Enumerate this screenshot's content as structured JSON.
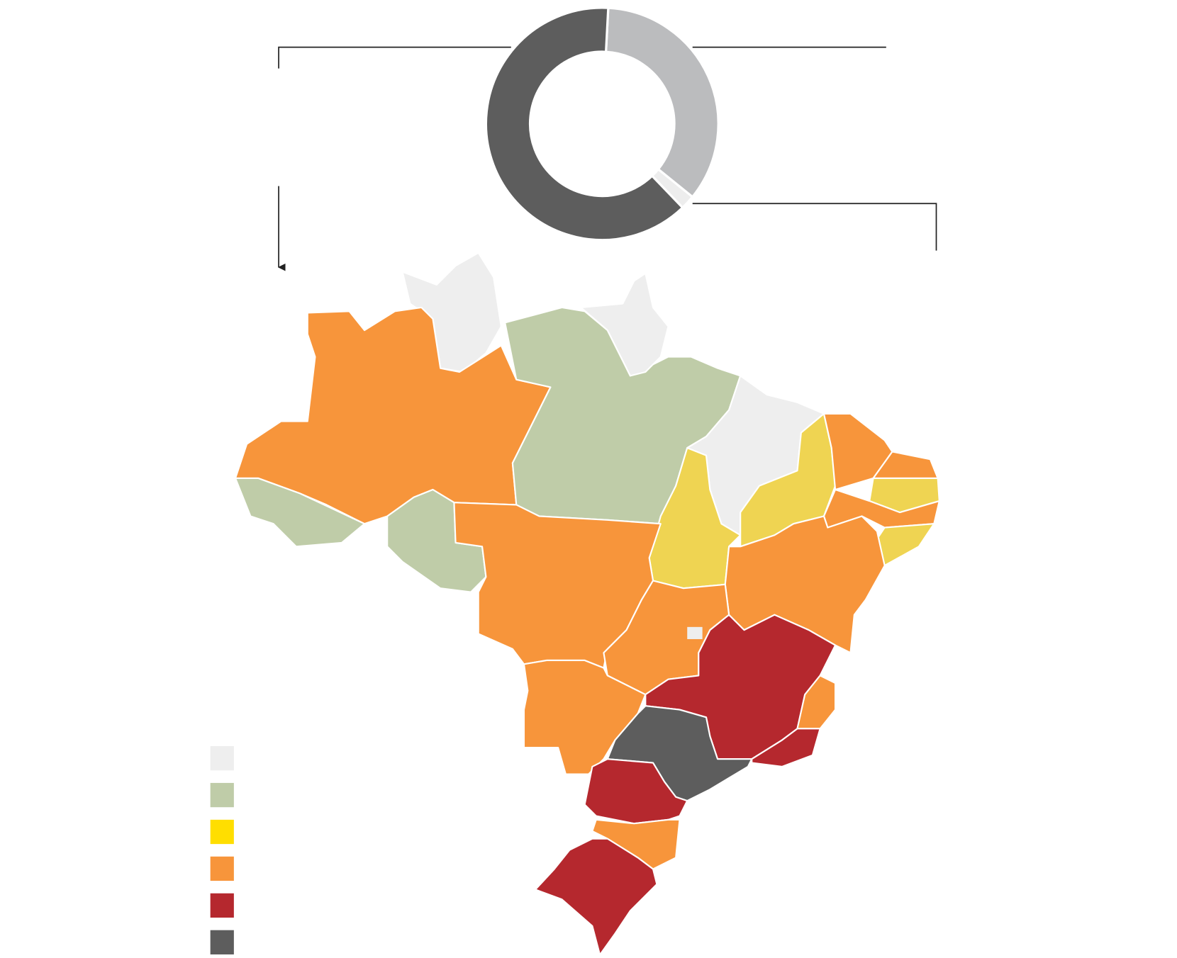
{
  "chart_data": {
    "type": "donut",
    "values": [
      35,
      2,
      63
    ],
    "colors": [
      "#bbbcbe",
      "#ededed",
      "#5d5d5d"
    ]
  },
  "legend": {
    "colors": [
      "#eeeeee",
      "#bfcca8",
      "#ffde00",
      "#f7953b",
      "#b5282e",
      "#5d5d5d"
    ]
  }
}
